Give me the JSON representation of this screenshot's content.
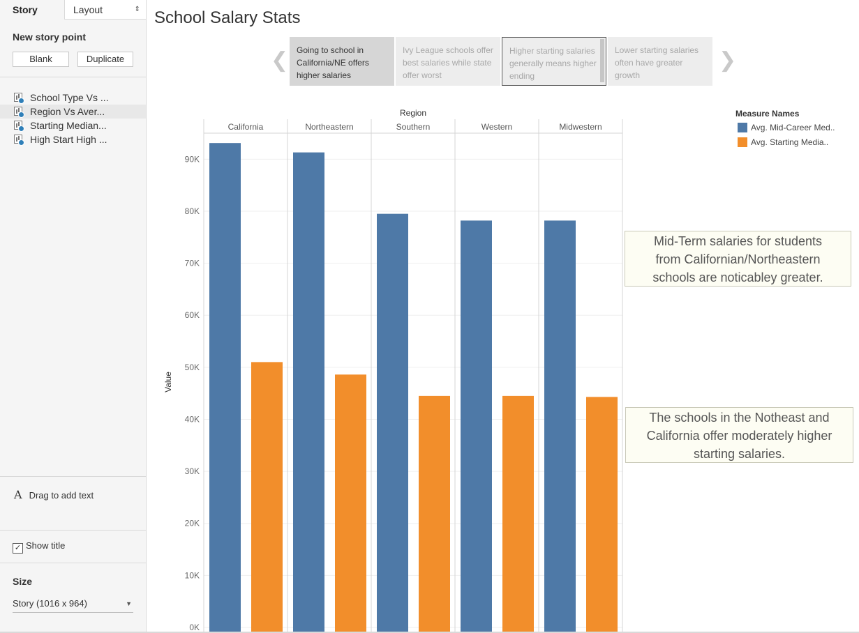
{
  "left_panel": {
    "tabs": {
      "story": "Story",
      "layout": "Layout"
    },
    "new_story_point": "New story point",
    "blank_button": "Blank",
    "duplicate_button": "Duplicate",
    "sheets": [
      {
        "label": "School Type Vs ..."
      },
      {
        "label": "Region Vs Aver..."
      },
      {
        "label": "Starting Median..."
      },
      {
        "label": "High Start High ..."
      }
    ],
    "drag_text": "Drag to add text",
    "show_title": "Show title",
    "size_label": "Size",
    "size_value": "Story (1016 x 964)"
  },
  "story": {
    "title": "School Salary Stats",
    "points": [
      {
        "text": "Going to school in California/NE offers higher salaries"
      },
      {
        "text": "Ivy League schools offer best salaries while state offer worst"
      },
      {
        "text": "Higher starting salaries generally means higher ending"
      },
      {
        "text": "Lower starting salaries often have greater growth"
      }
    ]
  },
  "chart_data": {
    "type": "bar",
    "column_header": "Region",
    "categories": [
      "California",
      "Northeastern",
      "Southern",
      "Western",
      "Midwestern"
    ],
    "ylabel": "Value",
    "ylim": [
      0,
      95000
    ],
    "yticks": [
      0,
      10000,
      20000,
      30000,
      40000,
      50000,
      60000,
      70000,
      80000,
      90000
    ],
    "ytick_labels": [
      "0K",
      "10K",
      "20K",
      "30K",
      "40K",
      "50K",
      "60K",
      "70K",
      "80K",
      "90K"
    ],
    "legend_title": "Measure Names",
    "series": [
      {
        "name": "Avg. Mid-Career Med..",
        "color": "#4e79a7",
        "values": [
          93100,
          91300,
          79500,
          78200,
          78200
        ]
      },
      {
        "name": "Avg. Starting Media..",
        "color": "#f28e2b",
        "values": [
          51000,
          48600,
          44500,
          44500,
          44300
        ]
      }
    ]
  },
  "annotations": [
    {
      "lines": [
        "Mid-Term salaries for students",
        "from Californian/Northeastern",
        "schools are noticabley greater."
      ]
    },
    {
      "lines": [
        "The schools in the Notheast and",
        "California offer moderately higher",
        "starting salaries."
      ]
    }
  ]
}
